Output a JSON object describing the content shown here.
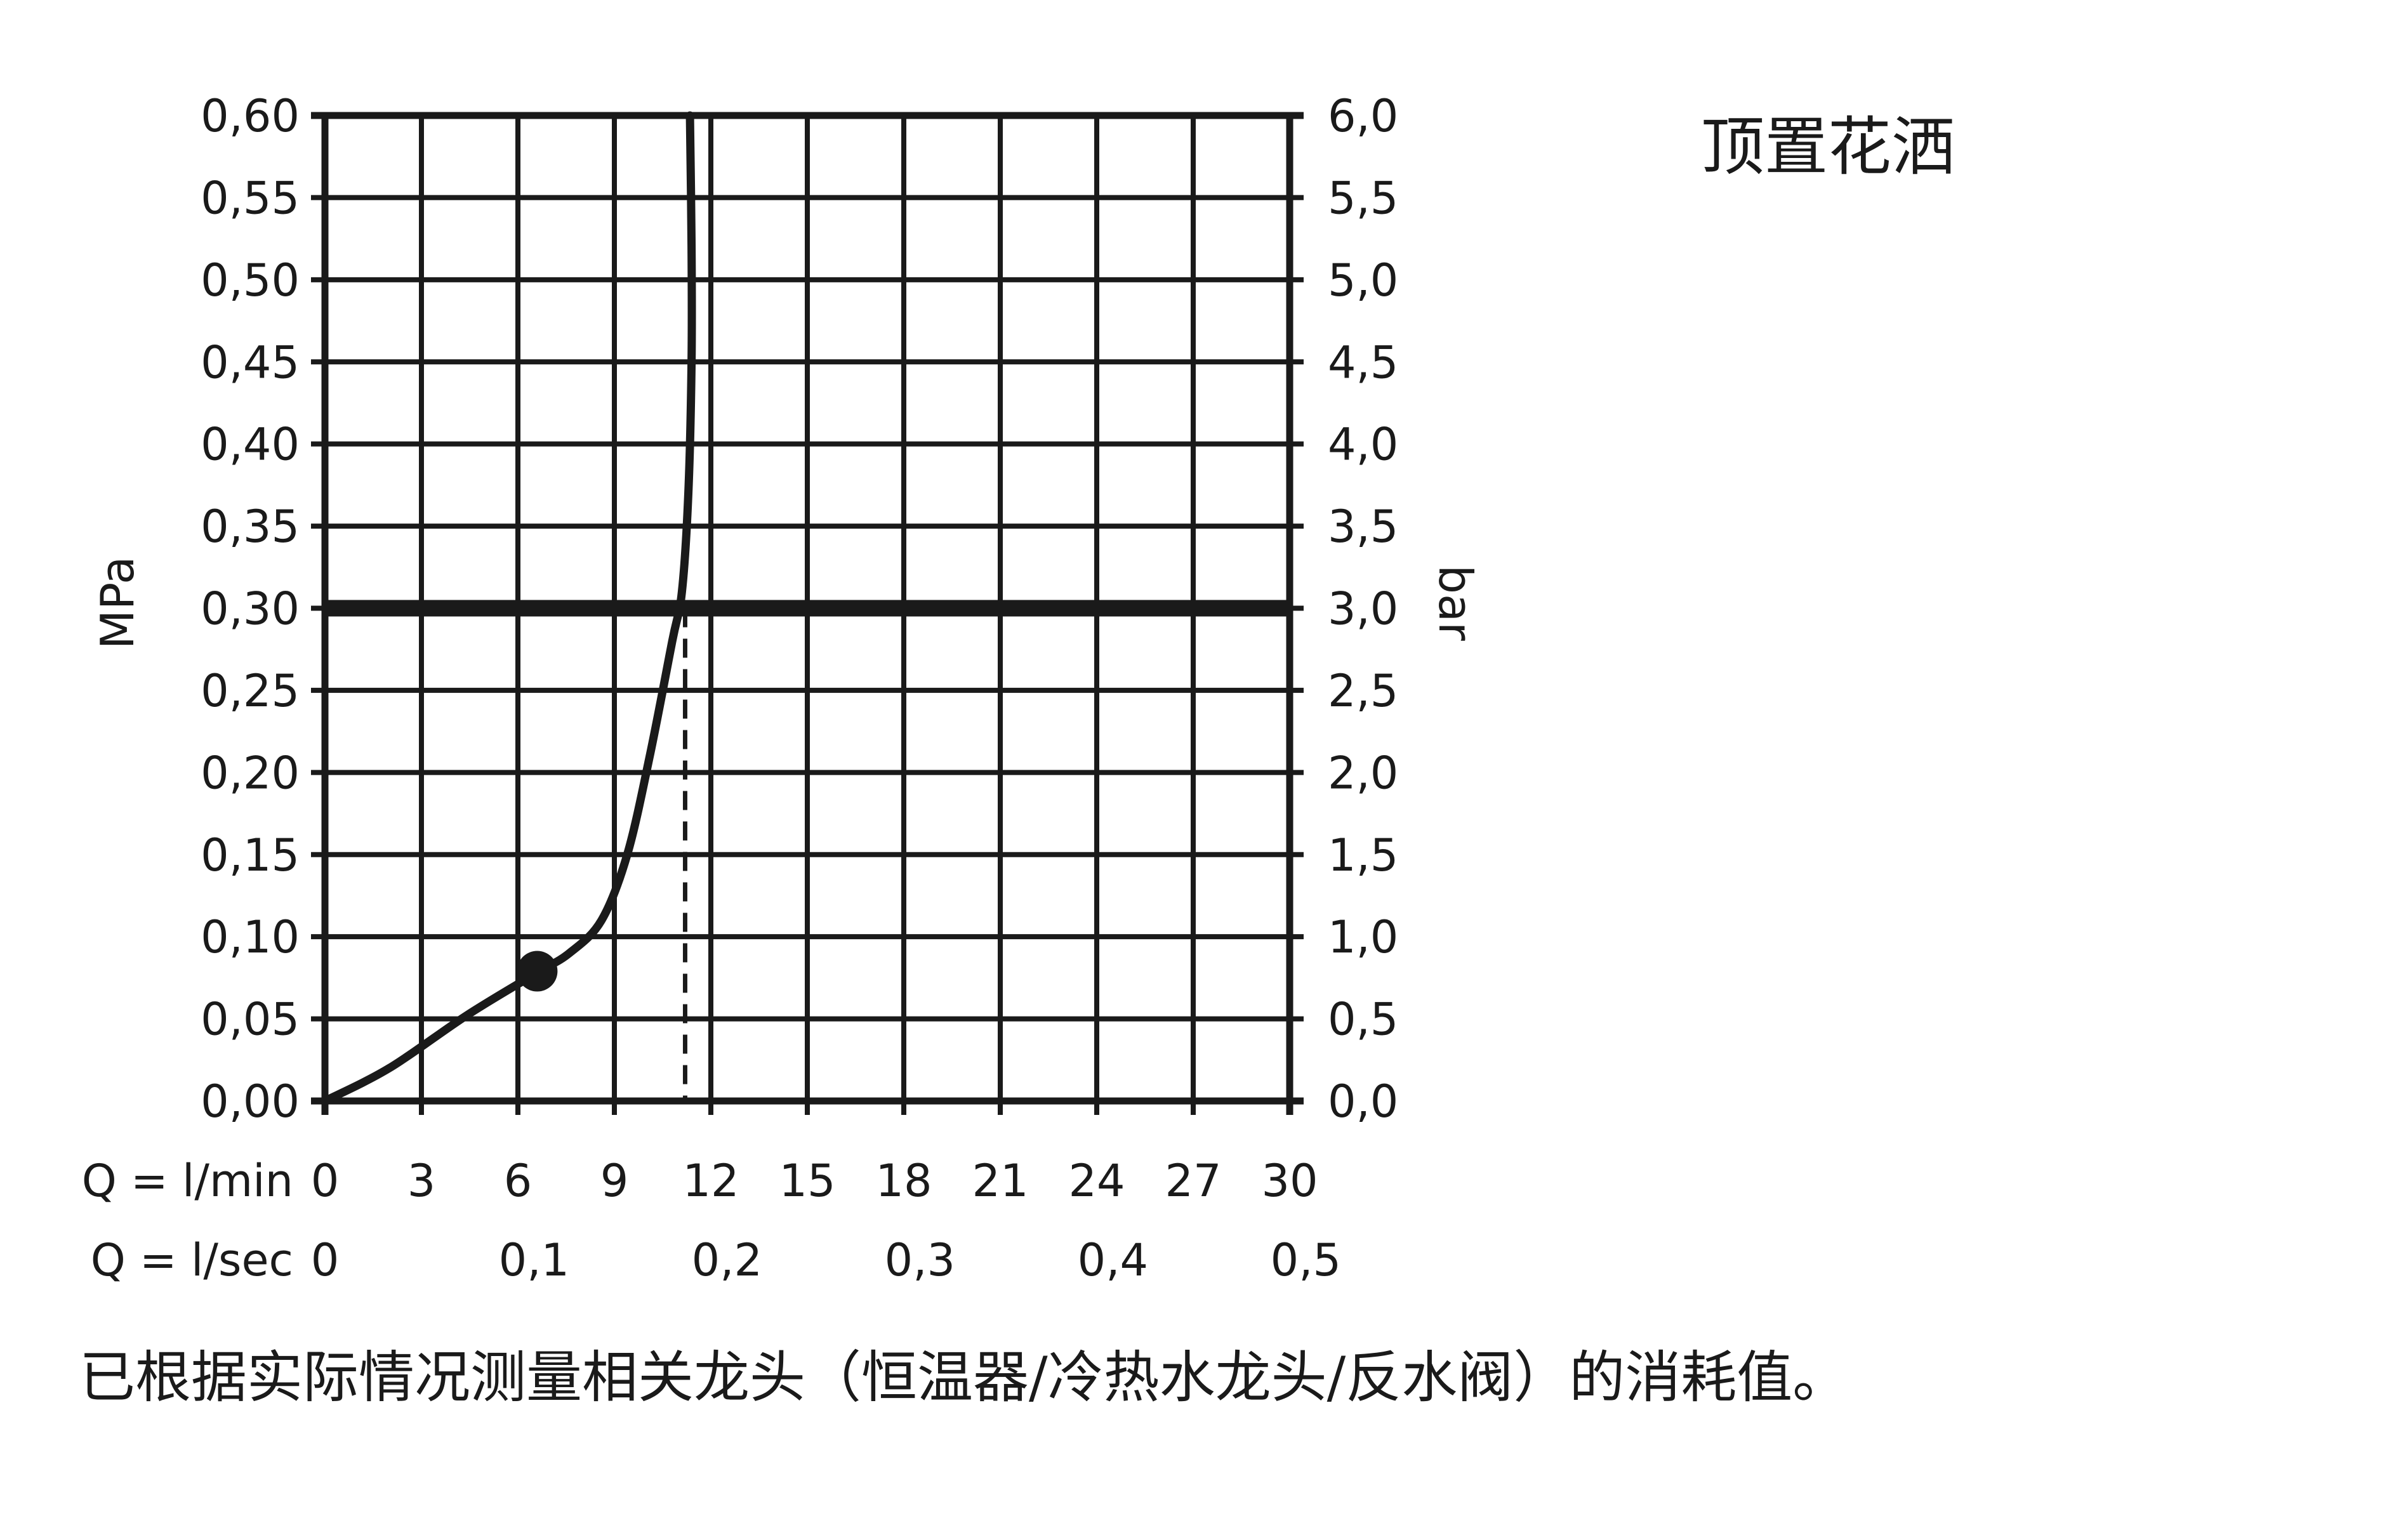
{
  "header": {
    "title": "顶置花洒"
  },
  "footer": {
    "note": "已根据实际情况测量相关龙头（恒温器/冷热水龙头/反水阀）的消耗值。"
  },
  "chart_data": {
    "type": "line",
    "title": "顶置花洒",
    "ylabel_left": "MPa",
    "ylabel_right": "bar",
    "xlim": [
      0,
      30
    ],
    "ylim": [
      0,
      0.6
    ],
    "grid": true,
    "x_ticks_lmin": [
      "0",
      "3",
      "6",
      "9",
      "12",
      "15",
      "18",
      "21",
      "24",
      "27",
      "30"
    ],
    "x_ticks_lsec": [
      {
        "q": 0,
        "label": "0"
      },
      {
        "q": 6.5,
        "label": "0,1"
      },
      {
        "q": 12.5,
        "label": "0,2"
      },
      {
        "q": 18.5,
        "label": "0,3"
      },
      {
        "q": 24.5,
        "label": "0,4"
      },
      {
        "q": 30.5,
        "label": "0,5"
      }
    ],
    "row_label_lmin": "Q = l/min",
    "row_label_lsec": "Q = l/sec",
    "y_ticks_left": [
      "0,00",
      "0,05",
      "0,10",
      "0,15",
      "0,20",
      "0,25",
      "0,30",
      "0,35",
      "0,40",
      "0,45",
      "0,50",
      "0,55",
      "0,60"
    ],
    "y_ticks_right": [
      "0,0",
      "0,5",
      "1,0",
      "1,5",
      "2,0",
      "2,5",
      "3,0",
      "3,5",
      "4,0",
      "4,5",
      "5,0",
      "5,5",
      "6,0"
    ],
    "series": [
      {
        "points": [
          [
            0,
            0
          ],
          [
            2,
            0.02
          ],
          [
            4.4,
            0.052
          ],
          [
            6.5,
            0.077
          ],
          [
            7.6,
            0.09
          ],
          [
            8.6,
            0.11
          ],
          [
            9.4,
            0.15
          ],
          [
            10.1,
            0.21
          ],
          [
            10.8,
            0.28
          ],
          [
            11.1,
            0.31
          ],
          [
            11.3,
            0.37
          ],
          [
            11.4,
            0.45
          ],
          [
            11.4,
            0.52
          ],
          [
            11.35,
            0.6
          ]
        ],
        "marker": {
          "x": 6.6,
          "y": 0.079
        }
      }
    ],
    "reference_line": {
      "y": 0.3,
      "label": "0,30"
    },
    "reference_drop": {
      "x": 11.2,
      "y": 0.3
    },
    "vertical_line": {
      "x": 12
    }
  }
}
